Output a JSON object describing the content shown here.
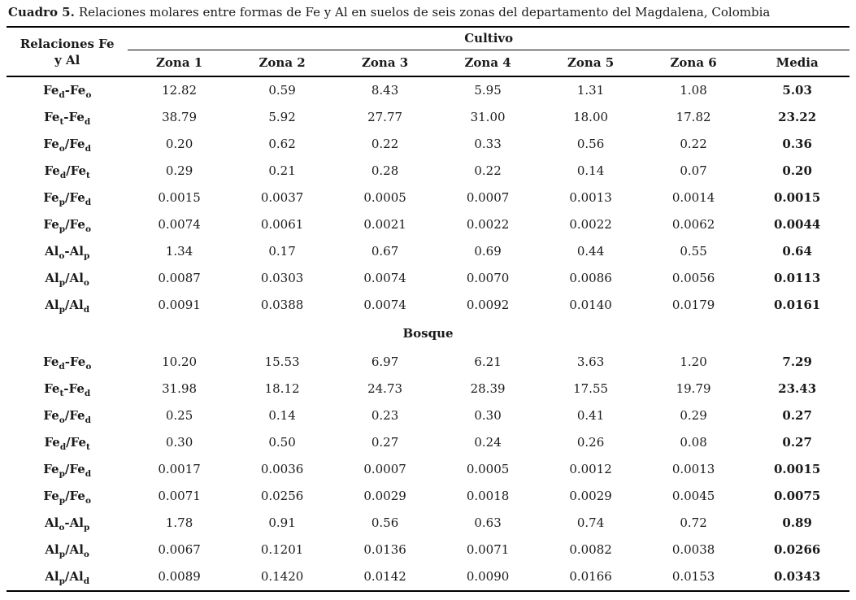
{
  "caption": {
    "label": "Cuadro 5.",
    "text": "Relaciones molares entre formas de Fe y Al en suelos de seis zonas del departamento del Magdalena, Colombia"
  },
  "table": {
    "row_header_line1": "Relaciones  Fe",
    "row_header_line2": "y Al",
    "columns": [
      "Zona 1",
      "Zona 2",
      "Zona 3",
      "Zona 4",
      "Zona 5",
      "Zona 6",
      "Media"
    ],
    "sections": [
      {
        "name": "Cultivo",
        "rows": [
          {
            "label": "Fe_d-Fe_o",
            "values": [
              "12.82",
              "0.59",
              "8.43",
              "5.95",
              "1.31",
              "1.08",
              "5.03"
            ]
          },
          {
            "label": "Fe_t-Fe_d",
            "values": [
              "38.79",
              "5.92",
              "27.77",
              "31.00",
              "18.00",
              "17.82",
              "23.22"
            ]
          },
          {
            "label": "Fe_o/Fe_d",
            "values": [
              "0.20",
              "0.62",
              "0.22",
              "0.33",
              "0.56",
              "0.22",
              "0.36"
            ]
          },
          {
            "label": "Fe_d/Fe_t",
            "values": [
              "0.29",
              "0.21",
              "0.28",
              "0.22",
              "0.14",
              "0.07",
              "0.20"
            ]
          },
          {
            "label": "Fe_p/Fe_d",
            "values": [
              "0.0015",
              "0.0037",
              "0.0005",
              "0.0007",
              "0.0013",
              "0.0014",
              "0.0015"
            ]
          },
          {
            "label": "Fe_p/Fe_o",
            "values": [
              "0.0074",
              "0.0061",
              "0.0021",
              "0.0022",
              "0.0022",
              "0.0062",
              "0.0044"
            ]
          },
          {
            "label": "Al_o-Al_p",
            "values": [
              "1.34",
              "0.17",
              "0.67",
              "0.69",
              "0.44",
              "0.55",
              "0.64"
            ]
          },
          {
            "label": "Al_p/Al_o",
            "values": [
              "0.0087",
              "0.0303",
              "0.0074",
              "0.0070",
              "0.0086",
              "0.0056",
              "0.0113"
            ]
          },
          {
            "label": "Al_p/Al_d",
            "values": [
              "0.0091",
              "0.0388",
              "0.0074",
              "0.0092",
              "0.0140",
              "0.0179",
              "0.0161"
            ]
          }
        ]
      },
      {
        "name": "Bosque",
        "rows": [
          {
            "label": "Fe_d-Fe_o",
            "values": [
              "10.20",
              "15.53",
              "6.97",
              "6.21",
              "3.63",
              "1.20",
              "7.29"
            ]
          },
          {
            "label": "Fe_t-Fe_d",
            "values": [
              "31.98",
              "18.12",
              "24.73",
              "28.39",
              "17.55",
              "19.79",
              "23.43"
            ]
          },
          {
            "label": "Fe_o/Fe_d",
            "values": [
              "0.25",
              "0.14",
              "0.23",
              "0.30",
              "0.41",
              "0.29",
              "0.27"
            ]
          },
          {
            "label": "Fe_d/Fe_t",
            "values": [
              "0.30",
              "0.50",
              "0.27",
              "0.24",
              "0.26",
              "0.08",
              "0.27"
            ]
          },
          {
            "label": "Fe_p/Fe_d",
            "values": [
              "0.0017",
              "0.0036",
              "0.0007",
              "0.0005",
              "0.0012",
              "0.0013",
              "0.0015"
            ]
          },
          {
            "label": "Fe_p/Fe_o",
            "values": [
              "0.0071",
              "0.0256",
              "0.0029",
              "0.0018",
              "0.0029",
              "0.0045",
              "0.0075"
            ]
          },
          {
            "label": "Al_o-Al_p",
            "values": [
              "1.78",
              "0.91",
              "0.56",
              "0.63",
              "0.74",
              "0.72",
              "0.89"
            ]
          },
          {
            "label": "Al_p/Al_o",
            "values": [
              "0.0067",
              "0.1201",
              "0.0136",
              "0.0071",
              "0.0082",
              "0.0038",
              "0.0266"
            ]
          },
          {
            "label": "Al_p/Al_d",
            "values": [
              "0.0089",
              "0.1420",
              "0.0142",
              "0.0090",
              "0.0166",
              "0.0153",
              "0.0343"
            ]
          }
        ]
      }
    ]
  }
}
